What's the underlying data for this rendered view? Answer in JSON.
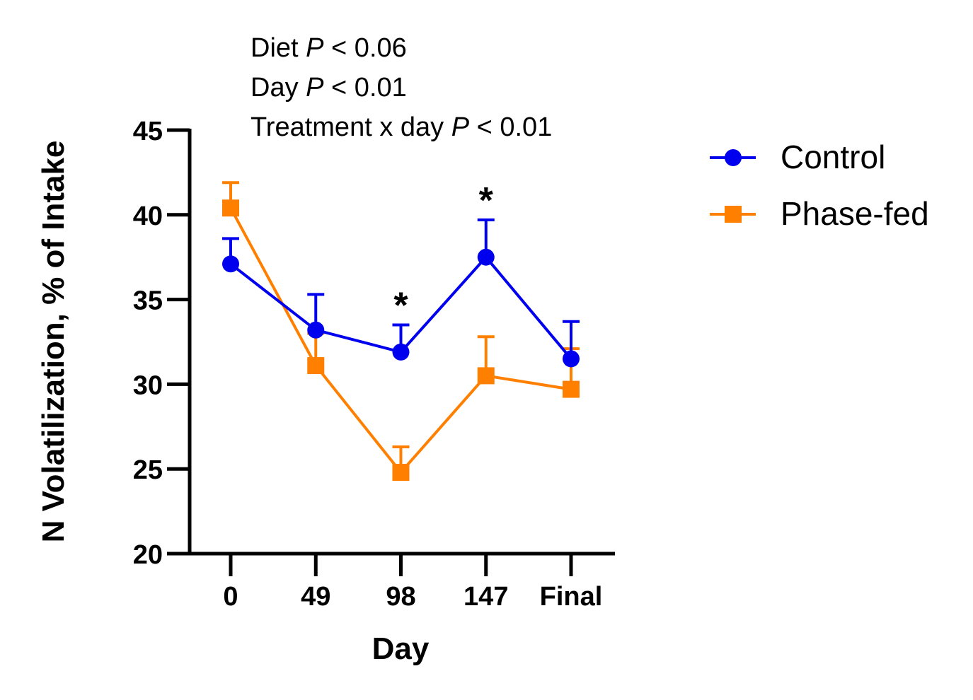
{
  "chart_data": {
    "type": "line",
    "title": "",
    "xlabel": "Day",
    "ylabel": "N Volatilization, % of Intake",
    "categories": [
      "0",
      "49",
      "98",
      "147",
      "Final"
    ],
    "ylim": [
      20,
      45
    ],
    "yticks": [
      "20",
      "25",
      "30",
      "35",
      "40",
      "45"
    ],
    "ytick_values": [
      20,
      25,
      30,
      35,
      40,
      45
    ],
    "grid": false,
    "legend_position": "right",
    "series": [
      {
        "name": "Control",
        "color": "#0000ee",
        "marker": "circle",
        "values": [
          37.1,
          33.2,
          31.9,
          37.5,
          31.5
        ],
        "error_upper": [
          38.6,
          35.3,
          33.5,
          39.7,
          33.7
        ]
      },
      {
        "name": "Phase-fed",
        "color": "#ff8000",
        "marker": "square",
        "values": [
          40.4,
          31.1,
          24.8,
          30.5,
          29.7
        ],
        "error_upper": [
          41.9,
          33.0,
          26.3,
          32.8,
          32.1
        ]
      }
    ],
    "annotations": {
      "stats": [
        {
          "prefix": "Diet ",
          "p": "P",
          "suffix": " < 0.06"
        },
        {
          "prefix": "Day ",
          "p": "P",
          "suffix": " < 0.01"
        },
        {
          "prefix": "Treatment x day ",
          "p": "P",
          "suffix": " < 0.01"
        }
      ],
      "significance_marks": [
        {
          "category": "98",
          "label": "*"
        },
        {
          "category": "147",
          "label": "*"
        }
      ]
    }
  }
}
